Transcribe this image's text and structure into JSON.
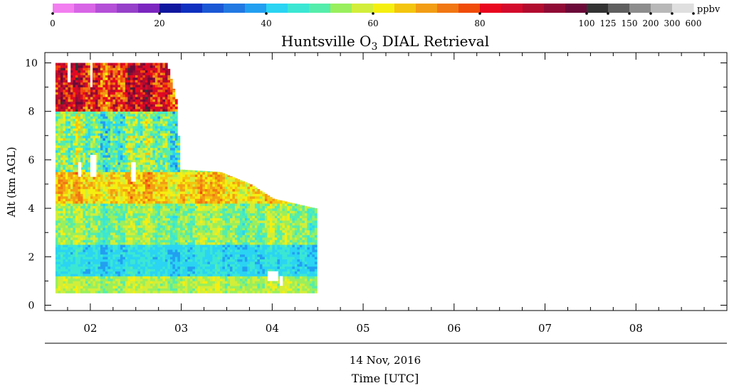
{
  "chart_data": {
    "type": "heatmap",
    "title_main": "Huntsville O",
    "title_sub": "3",
    "title_rest": " DIAL Retrieval",
    "ylabel": "Alt (km AGL)",
    "date_label": "14 Nov, 2016",
    "xlabel": "Time [UTC]",
    "x_range": [
      "01:30",
      "09:00"
    ],
    "y_range": [
      0,
      10
    ],
    "x_ticks": [
      "02",
      "03",
      "04",
      "05",
      "06",
      "07",
      "08"
    ],
    "y_ticks": [
      "0",
      "2",
      "4",
      "6",
      "8",
      "10"
    ],
    "colorbar": {
      "unit": "ppbv",
      "tick_labels": [
        "0",
        "20",
        "40",
        "60",
        "80",
        "100",
        "125",
        "150",
        "200",
        "300",
        "600"
      ],
      "colors": [
        "#f27ef0",
        "#d865e6",
        "#b44fd7",
        "#9640c9",
        "#7a26bf",
        "#10179f",
        "#0e2fbf",
        "#1a57d5",
        "#2279e2",
        "#229ff0",
        "#2ad4f2",
        "#3be7d3",
        "#55edab",
        "#99ef5d",
        "#d2ee3a",
        "#f5ef10",
        "#f4c50e",
        "#f29d14",
        "#f17713",
        "#f04b08",
        "#e8071e",
        "#d30a2b",
        "#b10b2e",
        "#8f0b35",
        "#6b0a39",
        "#333333",
        "#5f5f5f",
        "#8d8d8d",
        "#b8b8b8",
        "#dfdfdf"
      ]
    },
    "data_extent": {
      "start_time": "01:37",
      "end_time": "04:28",
      "min_altitude_km": 0.5,
      "top_altitude_km_by_time": [
        [
          "01:37",
          10.0
        ],
        [
          "02:50",
          10.0
        ],
        [
          "02:56",
          8.5
        ],
        [
          "02:59",
          5.6
        ],
        [
          "03:25",
          5.5
        ],
        [
          "03:45",
          5.0
        ],
        [
          "04:00",
          4.4
        ],
        [
          "04:28",
          4.0
        ]
      ]
    },
    "ozone_layers_ppbv": [
      {
        "altitude_km": [
          0.5,
          1.2
        ],
        "ozone_ppbv": "50-62"
      },
      {
        "altitude_km": [
          1.2,
          2.5
        ],
        "ozone_ppbv": "38-48"
      },
      {
        "altitude_km": [
          2.5,
          4.2
        ],
        "ozone_ppbv": "45-62"
      },
      {
        "altitude_km": [
          4.2,
          5.5
        ],
        "ozone_ppbv": "55-75"
      },
      {
        "altitude_km": [
          5.5,
          8.0
        ],
        "ozone_ppbv": "38-65"
      },
      {
        "altitude_km": [
          8.0,
          10.0
        ],
        "ozone_ppbv": "65-100"
      }
    ],
    "missing_data_blocks": [
      {
        "time": [
          "01:45",
          "01:47"
        ],
        "altitude_km": [
          9.2,
          10.0
        ]
      },
      {
        "time": [
          "02:00",
          "02:01"
        ],
        "altitude_km": [
          9.0,
          10.0
        ]
      },
      {
        "time": [
          "01:52",
          "01:54"
        ],
        "altitude_km": [
          5.3,
          5.9
        ]
      },
      {
        "time": [
          "02:00",
          "02:04"
        ],
        "altitude_km": [
          5.3,
          6.2
        ]
      },
      {
        "time": [
          "02:27",
          "02:30"
        ],
        "altitude_km": [
          5.1,
          5.9
        ]
      },
      {
        "time": [
          "03:57",
          "04:04"
        ],
        "altitude_km": [
          1.0,
          1.4
        ]
      },
      {
        "time": [
          "04:05",
          "04:07"
        ],
        "altitude_km": [
          0.8,
          1.2
        ]
      }
    ],
    "grid": false,
    "legend": "colorbar top"
  }
}
